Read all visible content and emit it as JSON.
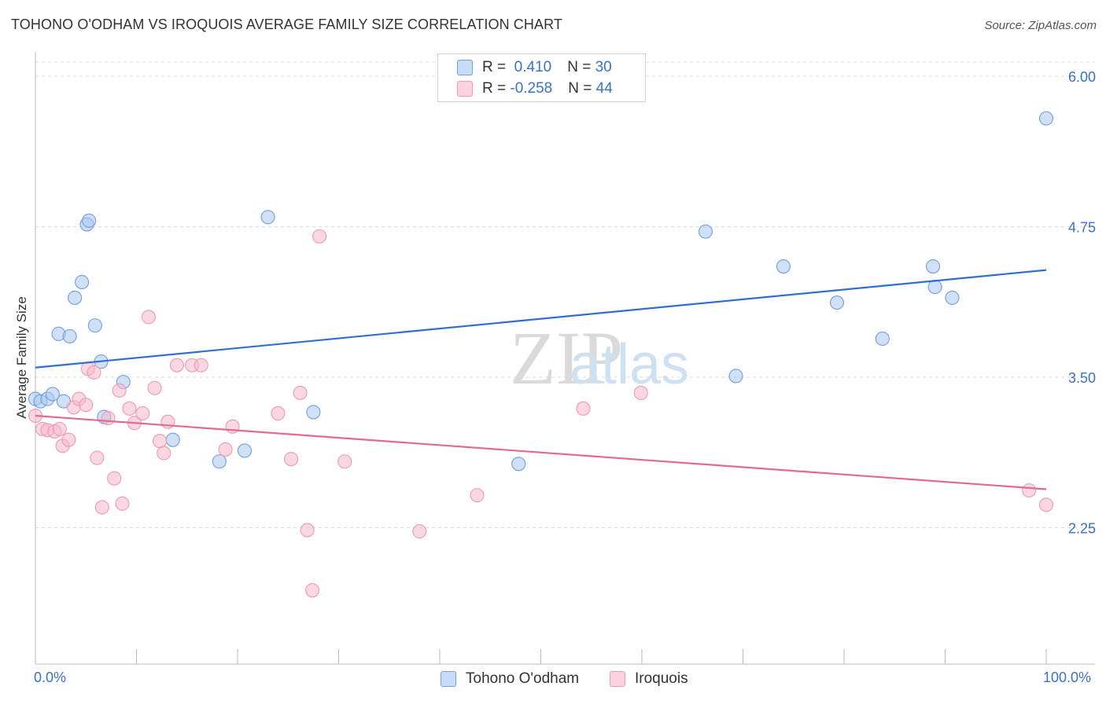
{
  "header": {
    "title": "TOHONO O'ODHAM VS IROQUOIS AVERAGE FAMILY SIZE CORRELATION CHART",
    "source": "Source: ZipAtlas.com"
  },
  "watermark": {
    "zip": "ZIP",
    "atlas": "atlas"
  },
  "legend": {
    "rows": [
      {
        "r_label": "R = ",
        "r_value": " 0.410",
        "n_label": "N = ",
        "n_value": "30",
        "color": "#a9c8f0"
      },
      {
        "r_label": "R = ",
        "r_value": "-0.258",
        "n_label": "N = ",
        "n_value": "44",
        "color": "#f6b8cb"
      }
    ]
  },
  "chart_data": {
    "type": "scatter",
    "title": "TOHONO O'ODHAM VS IROQUOIS AVERAGE FAMILY SIZE CORRELATION CHART",
    "xlabel": "",
    "ylabel": "Average Family Size",
    "xlim": [
      0,
      100
    ],
    "ylim": [
      1.2,
      6.2
    ],
    "x_tick_labels": [
      "0.0%",
      "100.0%"
    ],
    "y_ticks": [
      6.0,
      4.75,
      3.5,
      2.25
    ],
    "y_tick_labels": [
      "6.00",
      "4.75",
      "3.50",
      "2.25"
    ],
    "grid": true,
    "series": [
      {
        "name": "Tohono O'odham",
        "color": "#6f9fdc",
        "fill": "#a9c8f0",
        "line_color": "#2f6fcf",
        "trend": {
          "x": [
            0,
            100
          ],
          "y": [
            3.58,
            4.39
          ]
        },
        "points": [
          [
            0.0,
            3.32
          ],
          [
            0.5,
            3.3
          ],
          [
            1.2,
            3.32
          ],
          [
            1.7,
            3.36
          ],
          [
            2.3,
            3.86
          ],
          [
            2.8,
            3.3
          ],
          [
            3.4,
            3.84
          ],
          [
            3.9,
            4.16
          ],
          [
            4.6,
            4.29
          ],
          [
            5.1,
            4.77
          ],
          [
            5.3,
            4.8
          ],
          [
            5.9,
            3.93
          ],
          [
            6.5,
            3.63
          ],
          [
            6.8,
            3.17
          ],
          [
            8.7,
            3.46
          ],
          [
            13.6,
            2.98
          ],
          [
            18.2,
            2.8
          ],
          [
            20.7,
            2.89
          ],
          [
            23.0,
            4.83
          ],
          [
            27.5,
            3.21
          ],
          [
            47.8,
            2.78
          ],
          [
            66.3,
            4.71
          ],
          [
            69.3,
            3.51
          ],
          [
            74.0,
            4.42
          ],
          [
            79.3,
            4.12
          ],
          [
            83.8,
            3.82
          ],
          [
            88.8,
            4.42
          ],
          [
            89.0,
            4.25
          ],
          [
            90.7,
            4.16
          ],
          [
            100.0,
            5.65
          ]
        ]
      },
      {
        "name": "Iroquois",
        "color": "#ee9ab4",
        "fill": "#f6b8cb",
        "line_color": "#e26a93",
        "trend": {
          "x": [
            0,
            100
          ],
          "y": [
            3.18,
            2.57
          ]
        },
        "points": [
          [
            0.0,
            3.18
          ],
          [
            0.7,
            3.07
          ],
          [
            1.2,
            3.06
          ],
          [
            1.9,
            3.05
          ],
          [
            2.4,
            3.07
          ],
          [
            2.7,
            2.93
          ],
          [
            3.3,
            2.98
          ],
          [
            3.8,
            3.25
          ],
          [
            4.3,
            3.32
          ],
          [
            5.0,
            3.27
          ],
          [
            5.2,
            3.57
          ],
          [
            5.8,
            3.54
          ],
          [
            6.1,
            2.83
          ],
          [
            6.6,
            2.42
          ],
          [
            7.2,
            3.16
          ],
          [
            7.8,
            2.66
          ],
          [
            8.3,
            3.39
          ],
          [
            8.6,
            2.45
          ],
          [
            9.3,
            3.24
          ],
          [
            9.8,
            3.12
          ],
          [
            10.6,
            3.2
          ],
          [
            11.2,
            4.0
          ],
          [
            11.8,
            3.41
          ],
          [
            12.3,
            2.97
          ],
          [
            12.7,
            2.87
          ],
          [
            13.1,
            3.13
          ],
          [
            14.0,
            3.6
          ],
          [
            15.5,
            3.6
          ],
          [
            16.4,
            3.6
          ],
          [
            18.8,
            2.9
          ],
          [
            19.5,
            3.09
          ],
          [
            24.0,
            3.2
          ],
          [
            25.3,
            2.82
          ],
          [
            26.2,
            3.37
          ],
          [
            26.9,
            2.23
          ],
          [
            27.4,
            1.73
          ],
          [
            28.1,
            4.67
          ],
          [
            30.6,
            2.8
          ],
          [
            38.0,
            2.22
          ],
          [
            43.7,
            2.52
          ],
          [
            54.2,
            3.24
          ],
          [
            59.9,
            3.37
          ],
          [
            98.3,
            2.56
          ],
          [
            100.0,
            2.44
          ]
        ]
      }
    ]
  }
}
